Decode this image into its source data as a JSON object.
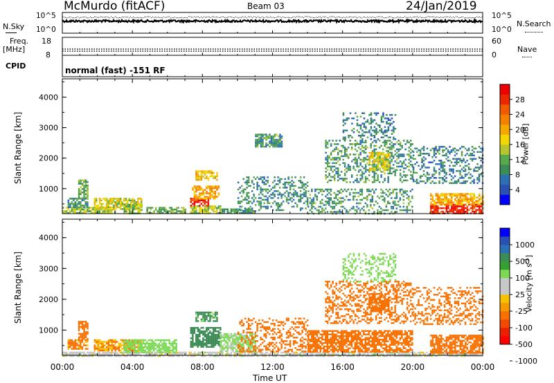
{
  "header": {
    "radar": "McMurdo (fitACF)",
    "beam": "Beam 03",
    "date": "24/Jan/2019"
  },
  "top_panels": {
    "nsky_label": "N.Sky",
    "nsearch_label": "N.Search",
    "nsky_ticks": [
      "10^5",
      "10^0"
    ],
    "nsearch_ticks": [
      "10^5",
      "10^0"
    ],
    "freq_label_1": "Freq.",
    "freq_label_2": "[MHz]",
    "freq_ticks": [
      "18",
      "8"
    ],
    "nave_label": "Nave",
    "nave_ticks": [
      "60",
      "0"
    ],
    "cpid_label": "CPID",
    "cpid_text": "normal (fast) -151 RF"
  },
  "colorbars": {
    "power": {
      "label": "Power [dB]",
      "ticks": [
        "28",
        "24",
        "20",
        "16",
        "12",
        "8",
        "4"
      ],
      "colors": [
        "#0000ff",
        "#2a50b4",
        "#2b6fb4",
        "#3c8c55",
        "#58a84c",
        "#b8c62e",
        "#f4d600",
        "#f7a800",
        "#f58000",
        "#f05a00",
        "#ec2600",
        "#ee0000"
      ]
    },
    "velocity": {
      "label": "Velocity [m s",
      "label_sup": "-1",
      "label_end": "]",
      "ticks": [
        "1000",
        "500",
        "100",
        "25",
        "-25",
        "-100",
        "-500",
        "-1000"
      ],
      "colors": [
        "#ff0000",
        "#ec2000",
        "#f24800",
        "#f77000",
        "#f59a00",
        "#f7c000",
        "#c8c8c8",
        "#c8c8c8",
        "#7ed957",
        "#35a030",
        "#3c8c55",
        "#2b6fb4",
        "#2a50b4",
        "#0000ff"
      ]
    }
  },
  "chart_data": [
    {
      "type": "heatmap",
      "title": "Power",
      "ylabel": "Slant Range [km]",
      "xlabel": "Time UT",
      "xlim": [
        "00:00",
        "24:00"
      ],
      "ylim": [
        180,
        4600
      ],
      "xticks": [
        "00:00",
        "04:00",
        "08:00",
        "12:00",
        "16:00",
        "20:00",
        "00:00"
      ],
      "yticks": [
        "1000",
        "2000",
        "3000",
        "4000"
      ],
      "colorbar_range": [
        0,
        32
      ],
      "regions": [
        {
          "t": [
            0.0,
            3.0
          ],
          "r": [
            180,
            400
          ],
          "v": 14
        },
        {
          "t": [
            0.3,
            1.4
          ],
          "r": [
            400,
            700
          ],
          "v": 10
        },
        {
          "t": [
            0.9,
            1.4
          ],
          "r": [
            700,
            1300
          ],
          "v": 12
        },
        {
          "t": [
            1.8,
            4.5
          ],
          "r": [
            350,
            700
          ],
          "v": 16
        },
        {
          "t": [
            3.5,
            4.5
          ],
          "r": [
            180,
            500
          ],
          "v": 14
        },
        {
          "t": [
            4.8,
            7.0
          ],
          "r": [
            180,
            400
          ],
          "v": 12
        },
        {
          "t": [
            7.3,
            9.0
          ],
          "r": [
            180,
            450
          ],
          "v": 14
        },
        {
          "t": [
            7.3,
            8.3
          ],
          "r": [
            450,
            700
          ],
          "v": 28
        },
        {
          "t": [
            7.4,
            8.9
          ],
          "r": [
            700,
            1100
          ],
          "v": 20
        },
        {
          "t": [
            7.6,
            8.8
          ],
          "r": [
            1300,
            1600
          ],
          "v": 18
        },
        {
          "t": [
            9.0,
            11.0
          ],
          "r": [
            180,
            350
          ],
          "v": 10
        },
        {
          "t": [
            10.0,
            14.0
          ],
          "r": [
            300,
            1400
          ],
          "v": 9
        },
        {
          "t": [
            11.0,
            12.5
          ],
          "r": [
            2400,
            2800
          ],
          "v": 10
        },
        {
          "t": [
            14.0,
            20.0
          ],
          "r": [
            180,
            1000
          ],
          "v": 10
        },
        {
          "t": [
            15.0,
            20.0
          ],
          "r": [
            1200,
            2600
          ],
          "v": 10
        },
        {
          "t": [
            17.5,
            18.6
          ],
          "r": [
            1600,
            2200
          ],
          "v": 16
        },
        {
          "t": [
            16.0,
            19.0
          ],
          "r": [
            2600,
            3500
          ],
          "v": 8
        },
        {
          "t": [
            20.0,
            24.0
          ],
          "r": [
            1200,
            2400
          ],
          "v": 8
        },
        {
          "t": [
            21.0,
            24.0
          ],
          "r": [
            180,
            500
          ],
          "v": 29
        },
        {
          "t": [
            21.0,
            24.0
          ],
          "r": [
            500,
            850
          ],
          "v": 20
        }
      ]
    },
    {
      "type": "heatmap",
      "title": "Velocity",
      "ylabel": "Slant Range [km]",
      "xlabel": "Time UT",
      "xlim": [
        "00:00",
        "24:00"
      ],
      "ylim": [
        180,
        4600
      ],
      "xticks": [
        "00:00",
        "04:00",
        "08:00",
        "12:00",
        "16:00",
        "20:00",
        "00:00"
      ],
      "yticks": [
        "1000",
        "2000",
        "3000",
        "4000"
      ],
      "colorbar_range": [
        -1000,
        1000
      ],
      "regions": [
        {
          "t": [
            0.0,
            24.0
          ],
          "r": [
            180,
            300
          ],
          "v": 0
        },
        {
          "t": [
            0.3,
            1.4
          ],
          "r": [
            400,
            700
          ],
          "v": -120
        },
        {
          "t": [
            0.9,
            1.4
          ],
          "r": [
            700,
            1300
          ],
          "v": -200
        },
        {
          "t": [
            1.8,
            4.5
          ],
          "r": [
            350,
            700
          ],
          "v": -100
        },
        {
          "t": [
            3.5,
            6.5
          ],
          "r": [
            300,
            700
          ],
          "v": 60
        },
        {
          "t": [
            7.3,
            9.0
          ],
          "r": [
            450,
            1100
          ],
          "v": 150
        },
        {
          "t": [
            7.6,
            8.8
          ],
          "r": [
            1300,
            1600
          ],
          "v": 120
        },
        {
          "t": [
            9.0,
            11.0
          ],
          "r": [
            300,
            900
          ],
          "v": 40
        },
        {
          "t": [
            10.0,
            14.0
          ],
          "r": [
            300,
            1400
          ],
          "v": -200
        },
        {
          "t": [
            14.0,
            20.0
          ],
          "r": [
            300,
            1000
          ],
          "v": -250
        },
        {
          "t": [
            15.0,
            20.0
          ],
          "r": [
            1200,
            2600
          ],
          "v": -300
        },
        {
          "t": [
            17.5,
            18.6
          ],
          "r": [
            1600,
            2200
          ],
          "v": -300
        },
        {
          "t": [
            16.0,
            19.0
          ],
          "r": [
            2600,
            3500
          ],
          "v": 60
        },
        {
          "t": [
            20.0,
            24.0
          ],
          "r": [
            1200,
            2400
          ],
          "v": -200
        },
        {
          "t": [
            21.0,
            24.0
          ],
          "r": [
            250,
            850
          ],
          "v": -250
        }
      ]
    }
  ]
}
